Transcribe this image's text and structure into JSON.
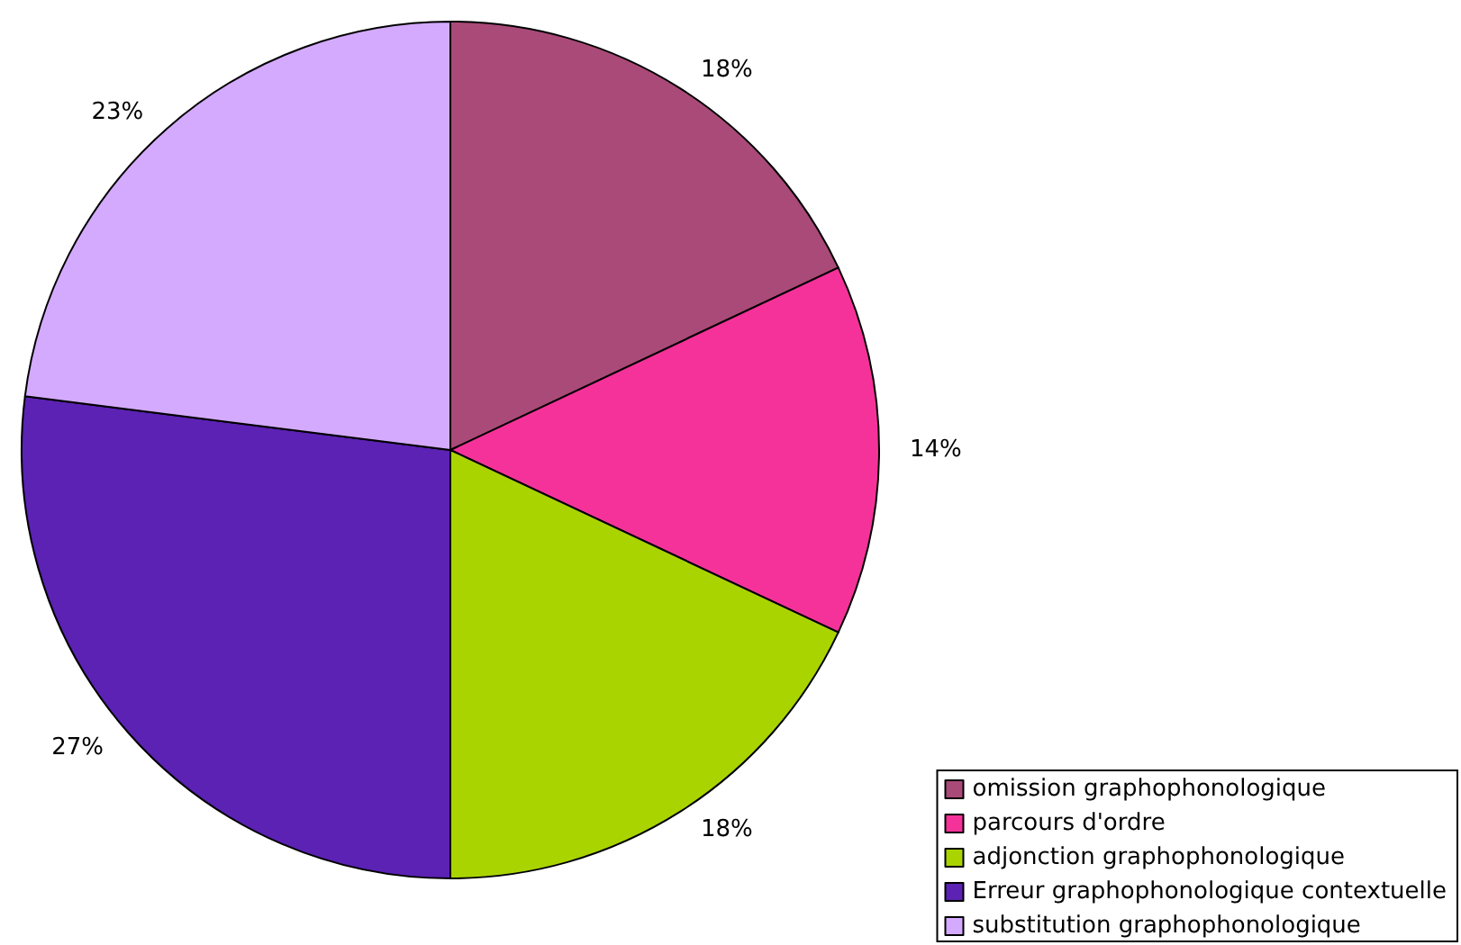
{
  "chart_data": {
    "type": "pie",
    "categories": [
      "omission graphophonologique",
      "parcours d'ordre",
      "adjonction graphophonologique",
      "Erreur graphophonologique contextuelle",
      "substitution graphophonologique"
    ],
    "values": [
      18,
      14,
      18,
      27,
      23
    ],
    "colors": [
      "#a94a78",
      "#f5329a",
      "#aad400",
      "#5b22b4",
      "#d4aaff"
    ],
    "value_labels": [
      "18%",
      "14%",
      "18%",
      "27%",
      "23%"
    ],
    "legend": "bottom right"
  }
}
